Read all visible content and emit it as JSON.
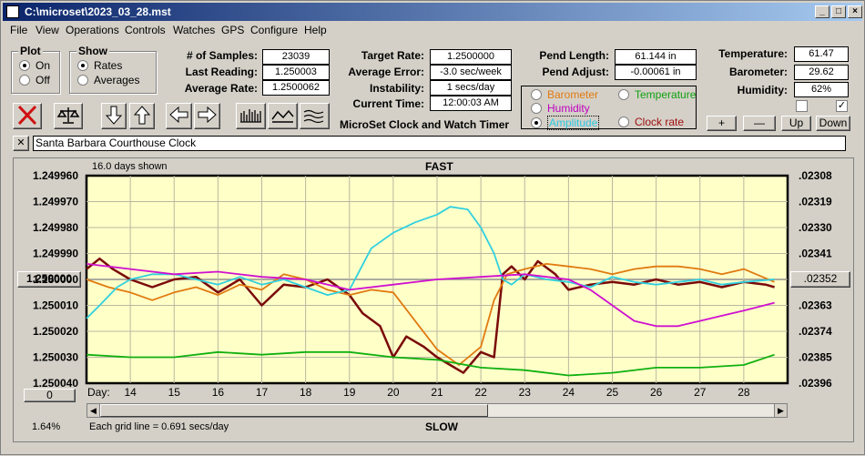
{
  "window": {
    "title": "C:\\microset\\2023_03_28.mst"
  },
  "menu": [
    "File",
    "View",
    "Operations",
    "Controls",
    "Watches",
    "GPS",
    "Configure",
    "Help"
  ],
  "plot_group": {
    "label": "Plot",
    "on": "On",
    "off": "Off",
    "selected": "On"
  },
  "show_group": {
    "label": "Show",
    "rates": "Rates",
    "averages": "Averages",
    "selected": "Rates"
  },
  "stats": {
    "samples_label": "# of Samples:",
    "samples": "23039",
    "last_label": "Last Reading:",
    "last": "1.250003",
    "avg_label": "Average Rate:",
    "avg": "1.2500062",
    "target_label": "Target Rate:",
    "target": "1.2500000",
    "avgerr_label": "Average Error:",
    "avgerr": "-3.0 sec/week",
    "instab_label": "Instability:",
    "instab": "1 secs/day",
    "time_label": "Current Time:",
    "time": "12:00:03 AM",
    "pendlen_label": "Pend Length:",
    "pendlen": "61.144 in",
    "pendadj_label": "Pend Adjust:",
    "pendadj": "-0.00061 in",
    "temp_label": "Temperature:",
    "temp": "61.47",
    "baro_label": "Barometer:",
    "baro": "29.62",
    "hum_label": "Humidity:",
    "hum": "62%"
  },
  "app_caption": "MicroSet Clock and Watch Timer",
  "series_select": {
    "options": [
      {
        "label": "Barometer",
        "color": "#e07a10"
      },
      {
        "label": "Temperature",
        "color": "#10a010"
      },
      {
        "label": "Humidity",
        "color": "#c000c0"
      },
      {
        "label": "Amplitude",
        "color": "#30d0e0",
        "selected": true
      },
      {
        "label": "Clock rate",
        "color": "#a01010"
      }
    ]
  },
  "adjust_buttons": {
    "plus": "+",
    "minus": "—",
    "up": "Up",
    "down": "Down"
  },
  "watch_name": "Santa Barbara Courthouse Clock",
  "chart_header": {
    "days_shown": "16.0 days shown",
    "top": "FAST",
    "bottom": "SLOW",
    "day_label": "Day:",
    "grid_note": "Each grid line = 0.691 secs/day",
    "percent": "1.64%",
    "center_button": "1.250000",
    "right_button": ".02352",
    "zero_button": "0"
  },
  "chart_data": {
    "type": "line",
    "left_ticks": [
      "1.249960",
      "1.249970",
      "1.249980",
      "1.249990",
      "1.250000",
      "1.250010",
      "1.250020",
      "1.250030",
      "1.250040"
    ],
    "right_ticks": [
      ".02308",
      ".02319",
      ".02330",
      ".02341",
      ".02352",
      ".02363",
      ".02374",
      ".02385",
      ".02396"
    ],
    "x_ticks": [
      "14",
      "15",
      "16",
      "17",
      "18",
      "19",
      "20",
      "21",
      "22",
      "23",
      "24",
      "25",
      "26",
      "27",
      "28"
    ],
    "xlim": [
      13.0,
      29.0
    ],
    "ylim": [
      1.24996,
      1.25004
    ],
    "series": [
      {
        "color": "#7a0a0a",
        "x": [
          13.0,
          13.3,
          13.6,
          14.0,
          14.5,
          15.0,
          15.5,
          16.0,
          16.5,
          17.0,
          17.5,
          18.0,
          18.5,
          19.0,
          19.3,
          19.7,
          20.0,
          20.3,
          20.7,
          21.0,
          21.3,
          21.6,
          22.0,
          22.3,
          22.5,
          22.7,
          23.0,
          23.3,
          23.7,
          24.0,
          24.5,
          25.0,
          25.5,
          26.0,
          26.5,
          27.0,
          27.5,
          28.0,
          28.5,
          28.7
        ],
        "y": [
          1.249996,
          1.249992,
          1.249996,
          1.25,
          1.250003,
          1.25,
          1.249999,
          1.250005,
          1.25,
          1.25001,
          1.250002,
          1.250003,
          1.25,
          1.250006,
          1.250013,
          1.250018,
          1.25003,
          1.250022,
          1.250026,
          1.25003,
          1.250033,
          1.250036,
          1.250028,
          1.25003,
          1.249998,
          1.249995,
          1.25,
          1.249993,
          1.249998,
          1.250004,
          1.250002,
          1.250001,
          1.250002,
          1.25,
          1.250002,
          1.250001,
          1.250003,
          1.250001,
          1.250002,
          1.250003
        ]
      },
      {
        "color": "#e07a10",
        "x": [
          13.0,
          13.5,
          14.0,
          14.5,
          15.0,
          15.5,
          16.0,
          16.5,
          17.0,
          17.5,
          18.0,
          18.5,
          19.0,
          19.5,
          20.0,
          20.5,
          21.0,
          21.5,
          22.0,
          22.3,
          22.6,
          23.0,
          23.5,
          24.0,
          24.5,
          25.0,
          25.5,
          26.0,
          26.5,
          27.0,
          27.5,
          28.0,
          28.7
        ],
        "y": [
          1.25,
          1.250003,
          1.250005,
          1.250008,
          1.250005,
          1.250003,
          1.250006,
          1.250002,
          1.250004,
          1.249998,
          1.25,
          1.250004,
          1.250006,
          1.250004,
          1.250005,
          1.250016,
          1.250027,
          1.250033,
          1.250026,
          1.250008,
          1.249998,
          1.249996,
          1.249994,
          1.249995,
          1.249996,
          1.249998,
          1.249996,
          1.249995,
          1.249995,
          1.249996,
          1.249998,
          1.249996,
          1.250001
        ]
      },
      {
        "color": "#30d0e0",
        "x": [
          13.0,
          13.3,
          13.7,
          14.0,
          14.5,
          15.0,
          15.5,
          16.0,
          16.5,
          17.0,
          17.5,
          18.0,
          18.5,
          19.0,
          19.5,
          20.0,
          20.5,
          21.0,
          21.3,
          21.7,
          22.0,
          22.3,
          22.5,
          22.7,
          23.0,
          23.5,
          24.0,
          24.5,
          25.0,
          25.5,
          26.0,
          26.5,
          27.0,
          27.5,
          28.0,
          28.7
        ],
        "y": [
          1.250015,
          1.25001,
          1.250003,
          1.25,
          1.249998,
          1.249998,
          1.25,
          1.250002,
          1.249999,
          1.250002,
          1.25,
          1.250003,
          1.250006,
          1.250004,
          1.249988,
          1.249982,
          1.249978,
          1.249975,
          1.249972,
          1.249973,
          1.24998,
          1.24999,
          1.25,
          1.250002,
          1.249998,
          1.25,
          1.250001,
          1.250003,
          1.249999,
          1.250001,
          1.250002,
          1.250001,
          1.25,
          1.250002,
          1.250001,
          1.25
        ]
      },
      {
        "color": "#d010d0",
        "x": [
          13.0,
          14.0,
          15.0,
          16.0,
          17.0,
          18.0,
          19.0,
          20.0,
          21.0,
          22.0,
          23.0,
          24.0,
          24.5,
          25.0,
          25.5,
          26.0,
          26.5,
          27.0,
          27.5,
          28.0,
          28.7
        ],
        "y": [
          1.249994,
          1.249996,
          1.249998,
          1.249997,
          1.249999,
          1.25,
          1.250004,
          1.250002,
          1.25,
          1.249999,
          1.249998,
          1.25,
          1.250004,
          1.25001,
          1.250016,
          1.250018,
          1.250018,
          1.250016,
          1.250014,
          1.250012,
          1.250009
        ]
      },
      {
        "color": "#10b010",
        "x": [
          13.0,
          14.0,
          15.0,
          16.0,
          17.0,
          18.0,
          19.0,
          20.0,
          21.0,
          22.0,
          23.0,
          24.0,
          25.0,
          26.0,
          27.0,
          28.0,
          28.7
        ],
        "y": [
          1.250029,
          1.25003,
          1.25003,
          1.250028,
          1.250029,
          1.250028,
          1.250028,
          1.25003,
          1.250031,
          1.250034,
          1.250035,
          1.250037,
          1.250036,
          1.250034,
          1.250034,
          1.250033,
          1.250029
        ]
      }
    ]
  }
}
